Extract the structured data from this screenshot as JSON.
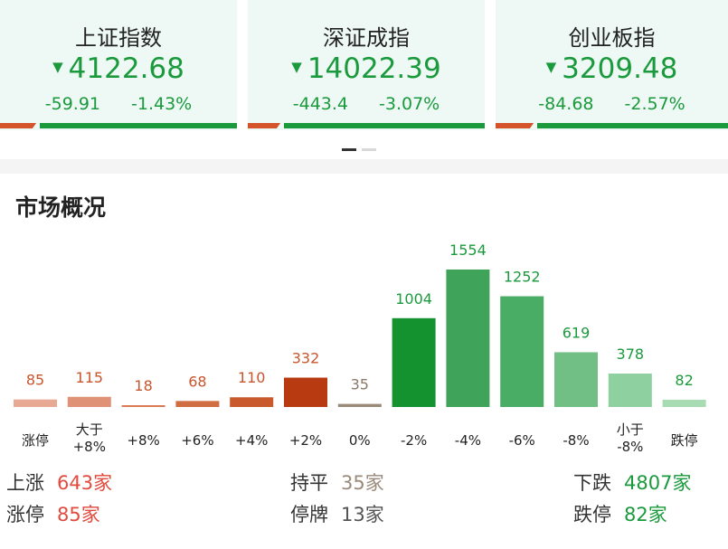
{
  "indices": [
    {
      "name": "上证指数",
      "value": "4122.68",
      "change": "-59.91",
      "pct": "-1.43%",
      "up_ratio": 0.14
    },
    {
      "name": "深证成指",
      "value": "14022.39",
      "change": "-443.4",
      "pct": "-3.07%",
      "up_ratio": 0.14
    },
    {
      "name": "创业板指",
      "value": "3209.48",
      "change": "-84.68",
      "pct": "-2.57%",
      "up_ratio": 0.14
    }
  ],
  "colors": {
    "up": "#d4532a",
    "down": "#1a9a3c",
    "flat": "#9a8a7a",
    "card_bg": "#eef9f5"
  },
  "section_title": "市场概况",
  "chart_data": {
    "type": "bar",
    "categories": [
      "涨停",
      "大于\n+8%",
      "+8%",
      "+6%",
      "+4%",
      "+2%",
      "0%",
      "-2%",
      "-4%",
      "-6%",
      "-8%",
      "小于\n-8%",
      "跌停"
    ],
    "values": [
      85,
      115,
      18,
      68,
      110,
      332,
      35,
      1004,
      1554,
      1252,
      619,
      378,
      82
    ],
    "colors": [
      "#e8a994",
      "#df9275",
      "#d97a55",
      "#d06d42",
      "#c85a2e",
      "#b83a10",
      "#9a8a7a",
      "#13922f",
      "#3fa35a",
      "#4aad66",
      "#72bf86",
      "#8fd0a0",
      "#a6dbb4"
    ],
    "label_colors": [
      "#c8552e",
      "#c8552e",
      "#c8552e",
      "#c8552e",
      "#c8552e",
      "#c8552e",
      "#8a7a6a",
      "#1a9a3c",
      "#1a9a3c",
      "#1a9a3c",
      "#1a9a3c",
      "#1a9a3c",
      "#1a9a3c"
    ],
    "title": "",
    "xlabel": "",
    "ylabel": "",
    "ylim": [
      0,
      1554
    ]
  },
  "summary": {
    "up_label": "上涨",
    "up_value": "643家",
    "limit_up_label": "涨停",
    "limit_up_value": "85家",
    "flat_label": "持平",
    "flat_value": "35家",
    "suspended_label": "停牌",
    "suspended_value": "13家",
    "down_label": "下跌",
    "down_value": "4807家",
    "limit_down_label": "跌停",
    "limit_down_value": "82家"
  }
}
